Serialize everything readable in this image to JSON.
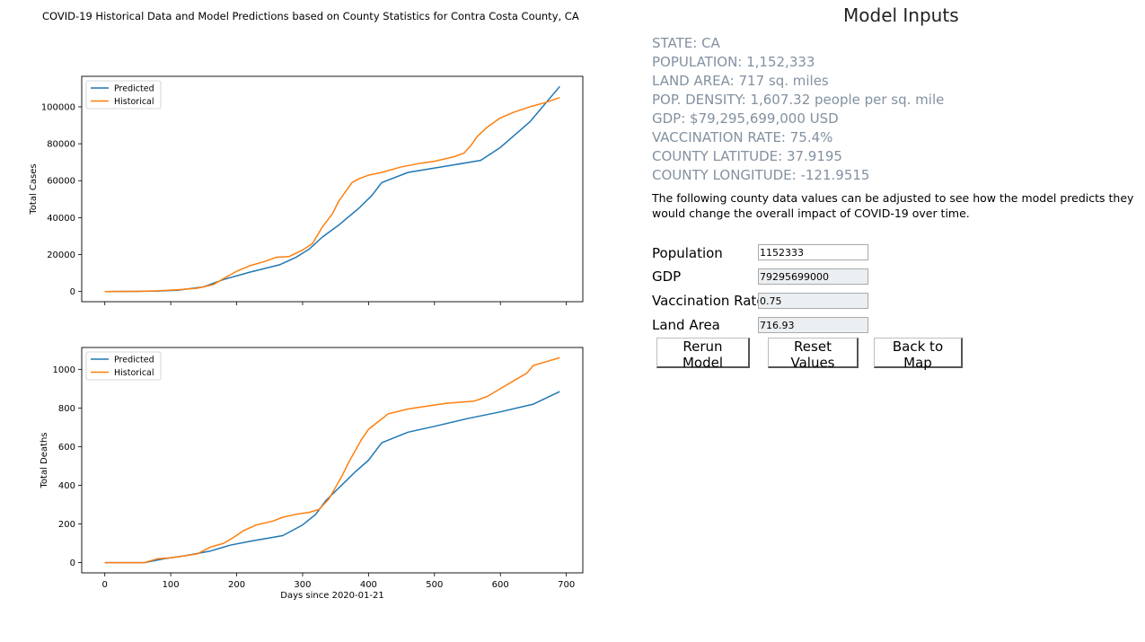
{
  "figure": {
    "title": "COVID-19 Historical Data and Model Predictions based on County Statistics for Contra Costa County, CA",
    "xlabel": "Days since 2020-01-21"
  },
  "panel": {
    "title": "Model Inputs",
    "info": [
      "STATE: CA",
      "POPULATION: 1,152,333",
      "LAND AREA: 717 sq. miles",
      "POP. DENSITY: 1,607.32 people per sq. mile",
      "GDP: $79,295,699,000 USD",
      "VACCINATION RATE: 75.4%",
      "COUNTY LATITUDE: 37.9195",
      "COUNTY LONGITUDE: -121.9515"
    ],
    "description": "The following county data values can be adjusted to see how the model predicts they would change the overall impact of COVID-19 over time.",
    "fields": [
      {
        "label": "Population",
        "value": "1152333"
      },
      {
        "label": "GDP",
        "value": "79295699000"
      },
      {
        "label": "Vaccination Rate",
        "value": "0.75"
      },
      {
        "label": "Land Area",
        "value": "716.93"
      }
    ],
    "buttons": {
      "rerun": "Rerun Model",
      "reset": "Reset Values",
      "back": "Back to Map"
    }
  },
  "chart_data": [
    {
      "type": "line",
      "title": "",
      "xlabel": "",
      "ylabel": "Total Cases",
      "xlim": [
        -35,
        725
      ],
      "ylim": [
        -5500,
        116500
      ],
      "xticks": [
        0,
        100,
        200,
        300,
        400,
        500,
        600,
        700
      ],
      "yticks": [
        0,
        20000,
        40000,
        60000,
        80000,
        100000
      ],
      "grid": false,
      "legend": "top-left",
      "series": [
        {
          "name": "Predicted",
          "color": "#1f77b4",
          "x": [
            0,
            50,
            80,
            110,
            150,
            180,
            220,
            265,
            290,
            310,
            330,
            355,
            385,
            405,
            420,
            460,
            520,
            570,
            600,
            645,
            690
          ],
          "y": [
            0,
            100,
            300,
            700,
            2500,
            6500,
            10500,
            14500,
            18500,
            23000,
            29500,
            36000,
            45000,
            52000,
            59000,
            64500,
            68000,
            71000,
            78000,
            92000,
            111000
          ]
        },
        {
          "name": "Historical",
          "color": "#ff7f0e",
          "x": [
            0,
            50,
            80,
            110,
            140,
            165,
            180,
            200,
            220,
            240,
            260,
            280,
            300,
            315,
            330,
            345,
            355,
            365,
            375,
            385,
            400,
            420,
            450,
            480,
            500,
            530,
            545,
            555,
            565,
            580,
            590,
            600,
            620,
            645,
            670,
            690
          ],
          "y": [
            0,
            100,
            400,
            900,
            1800,
            3800,
            7000,
            11000,
            14000,
            16000,
            18500,
            19000,
            22500,
            26000,
            35000,
            42000,
            49000,
            54000,
            59000,
            61000,
            63000,
            64500,
            67500,
            69500,
            70500,
            73000,
            75000,
            79000,
            84000,
            89000,
            91500,
            94000,
            97000,
            100000,
            102500,
            105000
          ]
        }
      ]
    },
    {
      "type": "line",
      "title": "",
      "xlabel": "Days since 2020-01-21",
      "ylabel": "Total Deaths",
      "xlim": [
        -35,
        725
      ],
      "ylim": [
        -53,
        1113
      ],
      "xticks": [
        0,
        100,
        200,
        300,
        400,
        500,
        600,
        700
      ],
      "yticks": [
        0,
        200,
        400,
        600,
        800,
        1000
      ],
      "grid": false,
      "legend": "top-left",
      "series": [
        {
          "name": "Predicted",
          "color": "#1f77b4",
          "x": [
            0,
            60,
            90,
            120,
            160,
            190,
            220,
            270,
            300,
            320,
            335,
            350,
            365,
            380,
            400,
            420,
            460,
            500,
            550,
            600,
            650,
            690
          ],
          "y": [
            0,
            0,
            20,
            35,
            60,
            90,
            110,
            140,
            195,
            250,
            320,
            370,
            420,
            470,
            530,
            620,
            675,
            705,
            745,
            780,
            820,
            885
          ]
        },
        {
          "name": "Historical",
          "color": "#ff7f0e",
          "x": [
            0,
            60,
            80,
            100,
            120,
            140,
            160,
            180,
            195,
            210,
            230,
            255,
            270,
            290,
            310,
            325,
            340,
            350,
            360,
            370,
            380,
            390,
            400,
            415,
            430,
            460,
            480,
            500,
            520,
            560,
            580,
            600,
            620,
            640,
            650,
            670,
            690
          ],
          "y": [
            0,
            0,
            20,
            25,
            35,
            45,
            80,
            100,
            130,
            165,
            195,
            215,
            235,
            250,
            260,
            275,
            330,
            390,
            450,
            520,
            580,
            640,
            690,
            730,
            770,
            795,
            805,
            815,
            825,
            835,
            860,
            900,
            940,
            980,
            1020,
            1040,
            1060
          ]
        }
      ]
    }
  ]
}
